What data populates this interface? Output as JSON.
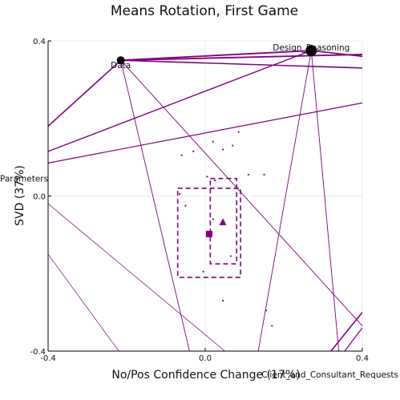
{
  "chart_data": {
    "type": "scatter",
    "title": "Means Rotation, First Game",
    "xlabel": "No/Pos Confidence Change (17%)",
    "ylabel": "SVD (37%)",
    "xlim": [
      -0.4,
      0.4
    ],
    "ylim": [
      -0.4,
      0.4
    ],
    "x_ticks": [
      "-0.4",
      "0.0",
      "0.4"
    ],
    "y_ticks": [
      "-0.4",
      "0.0",
      "0.4"
    ],
    "grid": true,
    "colors": {
      "accent": "#800080",
      "node": "#000000"
    },
    "nodes": [
      {
        "label": "Data",
        "x": -0.215,
        "y": 0.35,
        "r": 5
      },
      {
        "label": "Design_Reasoning",
        "x": 0.27,
        "y": 0.375,
        "r": 7
      },
      {
        "label": "Parameters",
        "x": -0.45,
        "y": 0.045,
        "r": 0
      },
      {
        "label": "Client_and_Consultant_Requests",
        "x": 0.42,
        "y": -0.46,
        "r": 0
      }
    ],
    "edges": [
      {
        "x1": -0.215,
        "y1": 0.35,
        "x2": 0.27,
        "y2": 0.375,
        "w": 1.8
      },
      {
        "x1": -0.215,
        "y1": 0.35,
        "x2": 0.4,
        "y2": 0.365,
        "w": 1.8
      },
      {
        "x1": -0.215,
        "y1": 0.35,
        "x2": 0.4,
        "y2": 0.33,
        "w": 1.6
      },
      {
        "x1": -0.215,
        "y1": 0.35,
        "x2": -0.4,
        "y2": 0.18,
        "w": 1.6
      },
      {
        "x1": 0.27,
        "y1": 0.375,
        "x2": 0.4,
        "y2": 0.36,
        "w": 1.6
      },
      {
        "x1": 0.27,
        "y1": 0.375,
        "x2": -0.4,
        "y2": 0.115,
        "w": 1.4
      },
      {
        "x1": -0.4,
        "y1": 0.085,
        "x2": 0.4,
        "y2": 0.24,
        "w": 1.2
      },
      {
        "x1": -0.215,
        "y1": 0.35,
        "x2": -0.04,
        "y2": -0.4,
        "w": 0.9
      },
      {
        "x1": -0.215,
        "y1": 0.35,
        "x2": 0.4,
        "y2": -0.335,
        "w": 0.9
      },
      {
        "x1": 0.27,
        "y1": 0.375,
        "x2": 0.135,
        "y2": -0.4,
        "w": 0.9
      },
      {
        "x1": 0.27,
        "y1": 0.375,
        "x2": 0.34,
        "y2": -0.4,
        "w": 0.9
      },
      {
        "x1": -0.4,
        "y1": -0.02,
        "x2": 0.05,
        "y2": -0.4,
        "w": 0.7
      },
      {
        "x1": -0.4,
        "y1": -0.15,
        "x2": -0.22,
        "y2": -0.4,
        "w": 0.7
      },
      {
        "x1": 0.4,
        "y1": -0.3,
        "x2": 0.32,
        "y2": -0.4,
        "w": 1.6
      },
      {
        "x1": 0.4,
        "y1": -0.34,
        "x2": 0.355,
        "y2": -0.4,
        "w": 1.2
      }
    ],
    "points": [
      {
        "x": -0.06,
        "y": 0.105
      },
      {
        "x": -0.03,
        "y": 0.115
      },
      {
        "x": 0.02,
        "y": 0.14
      },
      {
        "x": 0.045,
        "y": 0.12
      },
      {
        "x": 0.07,
        "y": 0.13
      },
      {
        "x": 0.085,
        "y": 0.165
      },
      {
        "x": 0.11,
        "y": 0.055
      },
      {
        "x": 0.15,
        "y": 0.055
      },
      {
        "x": 0.005,
        "y": 0.05
      },
      {
        "x": 0.025,
        "y": 0.04
      },
      {
        "x": 0.075,
        "y": 0.02
      },
      {
        "x": -0.065,
        "y": 0.005
      },
      {
        "x": -0.05,
        "y": -0.025
      },
      {
        "x": -0.005,
        "y": -0.195
      },
      {
        "x": 0.045,
        "y": -0.27
      },
      {
        "x": 0.155,
        "y": -0.295
      },
      {
        "x": 0.17,
        "y": -0.335
      },
      {
        "x": 0.065,
        "y": -0.155
      },
      {
        "x": 0.02,
        "y": -0.06
      }
    ],
    "means": [
      {
        "shape": "square",
        "x": 0.01,
        "y": -0.098
      },
      {
        "shape": "triangle",
        "x": 0.045,
        "y": -0.068
      }
    ],
    "boxes": [
      {
        "x1": -0.07,
        "y1": 0.02,
        "x2": 0.09,
        "y2": -0.21,
        "dash": "6,4"
      },
      {
        "x1": 0.013,
        "y1": 0.045,
        "x2": 0.08,
        "y2": -0.175,
        "dash": "6,4"
      }
    ]
  }
}
